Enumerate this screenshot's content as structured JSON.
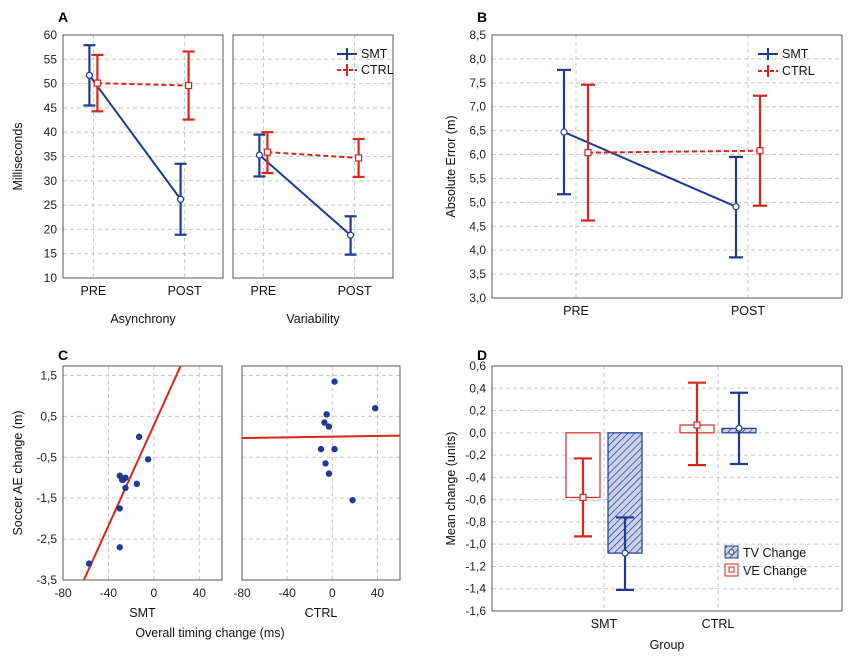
{
  "colors": {
    "smt": "#1f3a93",
    "ctrl": "#d9261c",
    "fit": "#d9261c"
  },
  "chart_data": [
    {
      "panel": "A",
      "type": "line",
      "ylabel": "Milliseconds",
      "ylim": [
        10,
        60
      ],
      "yticks": [
        "10",
        "15",
        "20",
        "25",
        "30",
        "35",
        "40",
        "45",
        "50",
        "55",
        "60"
      ],
      "categories": [
        "PRE",
        "POST"
      ],
      "legend": [
        "SMT",
        "CTRL"
      ],
      "subplots": [
        {
          "xlabel": "Asynchrony",
          "series": [
            {
              "name": "SMT",
              "mean": [
                51.7,
                26.2
              ],
              "lo": [
                45.5,
                18.9
              ],
              "hi": [
                57.9,
                33.5
              ]
            },
            {
              "name": "CTRL",
              "mean": [
                50.1,
                49.6
              ],
              "lo": [
                44.3,
                42.6
              ],
              "hi": [
                55.9,
                56.6
              ]
            }
          ]
        },
        {
          "xlabel": "Variability",
          "series": [
            {
              "name": "SMT",
              "mean": [
                35.3,
                18.8
              ],
              "lo": [
                30.9,
                14.8
              ],
              "hi": [
                39.5,
                22.7
              ]
            },
            {
              "name": "CTRL",
              "mean": [
                35.9,
                34.7
              ],
              "lo": [
                31.6,
                30.8
              ],
              "hi": [
                40.0,
                38.6
              ]
            }
          ]
        }
      ]
    },
    {
      "panel": "B",
      "type": "line",
      "ylabel": "Absolute Error (m)",
      "ylim": [
        3.0,
        8.5
      ],
      "yticks": [
        "3,0",
        "3,5",
        "4,0",
        "4,5",
        "5,0",
        "5,5",
        "6,0",
        "6,5",
        "7,0",
        "7,5",
        "8,0",
        "8,5"
      ],
      "categories": [
        "PRE",
        "POST"
      ],
      "legend": [
        "SMT",
        "CTRL"
      ],
      "series": [
        {
          "name": "SMT",
          "mean": [
            6.47,
            4.91
          ],
          "lo": [
            5.17,
            3.85
          ],
          "hi": [
            7.77,
            5.95
          ]
        },
        {
          "name": "CTRL",
          "mean": [
            6.04,
            6.08
          ],
          "lo": [
            4.62,
            4.93
          ],
          "hi": [
            7.46,
            7.23
          ]
        }
      ]
    },
    {
      "panel": "C",
      "type": "scatter",
      "ylabel": "Soccer AE change (m)",
      "xlabel": "Overall timing change (ms)",
      "ylim": [
        -3.5,
        2.0
      ],
      "xlim": [
        -80,
        60
      ],
      "yticks": [
        "-3,5",
        "-2,5",
        "-1,5",
        "-0,5",
        "0,5",
        "1,5"
      ],
      "xticks": [
        "-80",
        "-40",
        "0",
        "40"
      ],
      "subplots": [
        {
          "name": "SMT",
          "points": [
            [
              -57,
              -3.1
            ],
            [
              -30,
              -2.7
            ],
            [
              -30,
              -1.75
            ],
            [
              -30,
              -0.95
            ],
            [
              -28,
              -1.05
            ],
            [
              -25,
              -1.0
            ],
            [
              -27,
              -1.05
            ],
            [
              -25,
              -1.25
            ],
            [
              -15,
              -1.15
            ],
            [
              -13,
              0.0
            ],
            [
              -5,
              -0.55
            ]
          ],
          "fit": [
            [
              -80,
              -4.63
            ],
            [
              60,
              3.97
            ]
          ]
        },
        {
          "name": "CTRL",
          "points": [
            [
              2,
              1.35
            ],
            [
              -5,
              0.55
            ],
            [
              -7,
              0.35
            ],
            [
              -3,
              0.25
            ],
            [
              -10,
              -0.3
            ],
            [
              2,
              -0.3
            ],
            [
              -6,
              -0.65
            ],
            [
              -3,
              -0.9
            ],
            [
              18,
              -1.55
            ],
            [
              38,
              0.7
            ]
          ],
          "fit": [
            [
              -80,
              -0.03
            ],
            [
              60,
              0.03
            ]
          ]
        }
      ]
    },
    {
      "panel": "D",
      "type": "bar",
      "ylabel": "Mean change (units)",
      "xlabel": "Group",
      "ylim": [
        -1.6,
        0.6
      ],
      "yticks": [
        "-1,6",
        "-1,4",
        "-1,2",
        "-1,0",
        "-0,8",
        "-0,6",
        "-0,4",
        "-0,2",
        "0,0",
        "0,2",
        "0,4",
        "0,6"
      ],
      "categories": [
        "SMT",
        "CTRL"
      ],
      "legend": [
        "TV Change",
        "VE Change"
      ],
      "series": [
        {
          "name": "VE Change",
          "values": [
            -0.58,
            0.07
          ],
          "lo": [
            -0.93,
            -0.29
          ],
          "hi": [
            -0.23,
            0.45
          ]
        },
        {
          "name": "TV Change",
          "values": [
            -1.08,
            0.04
          ],
          "lo": [
            -1.41,
            -0.28
          ],
          "hi": [
            -0.76,
            0.36
          ]
        }
      ]
    }
  ],
  "labels": {
    "A": "A",
    "B": "B",
    "C": "C",
    "D": "D"
  }
}
